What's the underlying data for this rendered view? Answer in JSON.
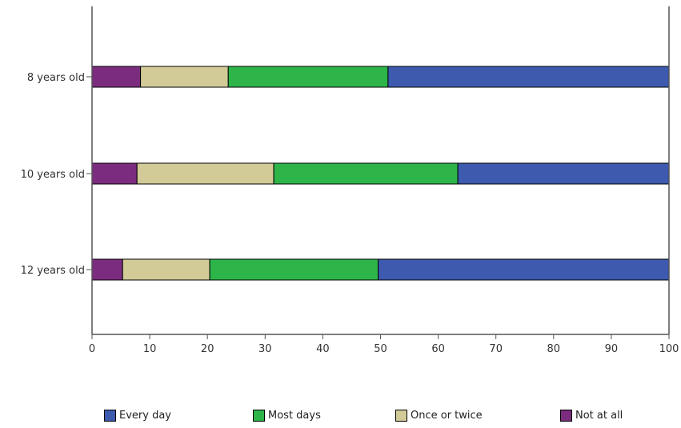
{
  "chart_data": {
    "type": "bar",
    "orientation": "horizontal",
    "stacked": true,
    "title": "",
    "xlabel": "",
    "ylabel": "",
    "xlim": [
      0,
      100
    ],
    "x_ticks": [
      0,
      10,
      20,
      30,
      40,
      50,
      60,
      70,
      80,
      90,
      100
    ],
    "grid": false,
    "legend_position": "bottom",
    "categories": [
      "8 years old",
      "10 years old",
      "12 years old"
    ],
    "series": [
      {
        "name": "Not at all",
        "color": "#7b2c7f",
        "values": [
          8.4,
          7.8,
          5.3
        ]
      },
      {
        "name": "Once or twice",
        "color": "#d2cb97",
        "values": [
          15.2,
          23.7,
          15.1
        ]
      },
      {
        "name": "Most days",
        "color": "#2db54a",
        "values": [
          27.7,
          31.9,
          29.2
        ]
      },
      {
        "name": "Every day",
        "color": "#3d5aae",
        "values": [
          48.7,
          36.6,
          50.4
        ]
      }
    ],
    "legend_order": [
      "Every day",
      "Most days",
      "Once or twice",
      "Not at all"
    ]
  }
}
